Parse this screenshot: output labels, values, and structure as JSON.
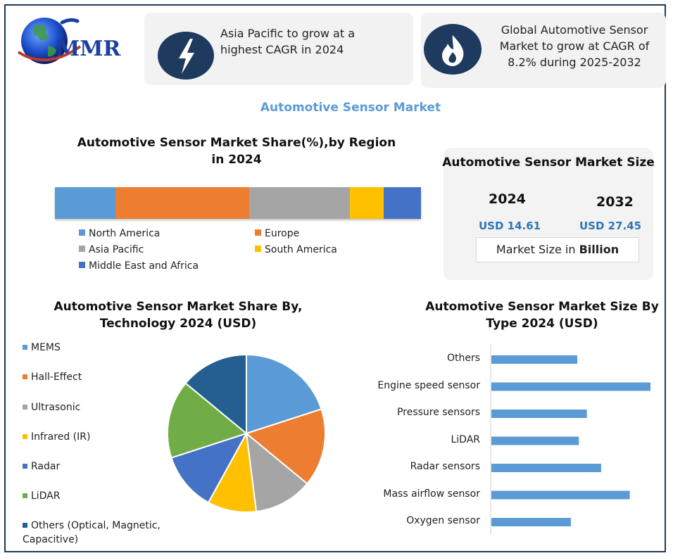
{
  "logo": {
    "text": "MMR"
  },
  "callouts": [
    {
      "text": "Asia Pacific to grow at a highest CAGR in 2024",
      "icon": "lightning-icon"
    },
    {
      "text": "Global Automotive Sensor Market to grow at CAGR of 8.2% during 2025-2032",
      "icon": "flame-icon"
    }
  ],
  "main_title": "Automotive Sensor Market",
  "market_size": {
    "title": "Automotive Sensor Market Size",
    "year_a": "2024",
    "year_b": "2032",
    "value_a": "USD 14.61",
    "value_b": "USD 27.45",
    "note_prefix": "Market Size in ",
    "note_bold": "Billion"
  },
  "colors": {
    "navy": "#1f3a5f",
    "blue": "#5b9bd5",
    "orange": "#ed7d31",
    "gray": "#a5a5a5",
    "yellow": "#ffc000",
    "dark_blue": "#4472c4",
    "green": "#70ad47",
    "dark_navy": "#255e91"
  },
  "chart_data": [
    {
      "type": "bar",
      "title": "Automotive Sensor Market Share(%),by Region in 2024",
      "orientation": "horizontal-stacked-100",
      "series": [
        {
          "name": "North America",
          "value": 16.5,
          "color": "#5b9bd5"
        },
        {
          "name": "Europe",
          "value": 36.5,
          "color": "#ed7d31"
        },
        {
          "name": "Asia Pacific",
          "value": 27.6,
          "color": "#a5a5a5"
        },
        {
          "name": "South America",
          "value": 9.2,
          "color": "#ffc000"
        },
        {
          "name": "Middle East and Africa",
          "value": 10.2,
          "color": "#4472c4"
        }
      ],
      "legend_position": "bottom"
    },
    {
      "type": "pie",
      "title": "Automotive Sensor Market  Share By, Technology  2024  (USD)",
      "slices": [
        {
          "name": "MEMS",
          "value": 20,
          "color": "#5b9bd5"
        },
        {
          "name": "Hall-Effect",
          "value": 16,
          "color": "#ed7d31"
        },
        {
          "name": "Ultrasonic",
          "value": 12,
          "color": "#a5a5a5"
        },
        {
          "name": "Infrared (IR)",
          "value": 10,
          "color": "#ffc000"
        },
        {
          "name": "Radar",
          "value": 12,
          "color": "#4472c4"
        },
        {
          "name": "LiDAR",
          "value": 16,
          "color": "#70ad47"
        },
        {
          "name": "Others (Optical, Magnetic, Capacitive)",
          "value": 14,
          "color": "#255e91"
        }
      ],
      "legend_position": "left"
    },
    {
      "type": "bar",
      "title": "Automotive Sensor Market Size By Type 2024  (USD)",
      "orientation": "horizontal",
      "categories": [
        "Others",
        "Engine speed sensor",
        "Pressure sensors",
        "LiDAR",
        "Radar sensors",
        "Mass airflow sensor",
        "Oxygen sensor"
      ],
      "values": [
        5.4,
        10.0,
        6.0,
        5.5,
        6.9,
        8.7,
        5.0
      ],
      "xlim": [
        0,
        10
      ],
      "color": "#5b9bd5",
      "grid": false
    }
  ]
}
